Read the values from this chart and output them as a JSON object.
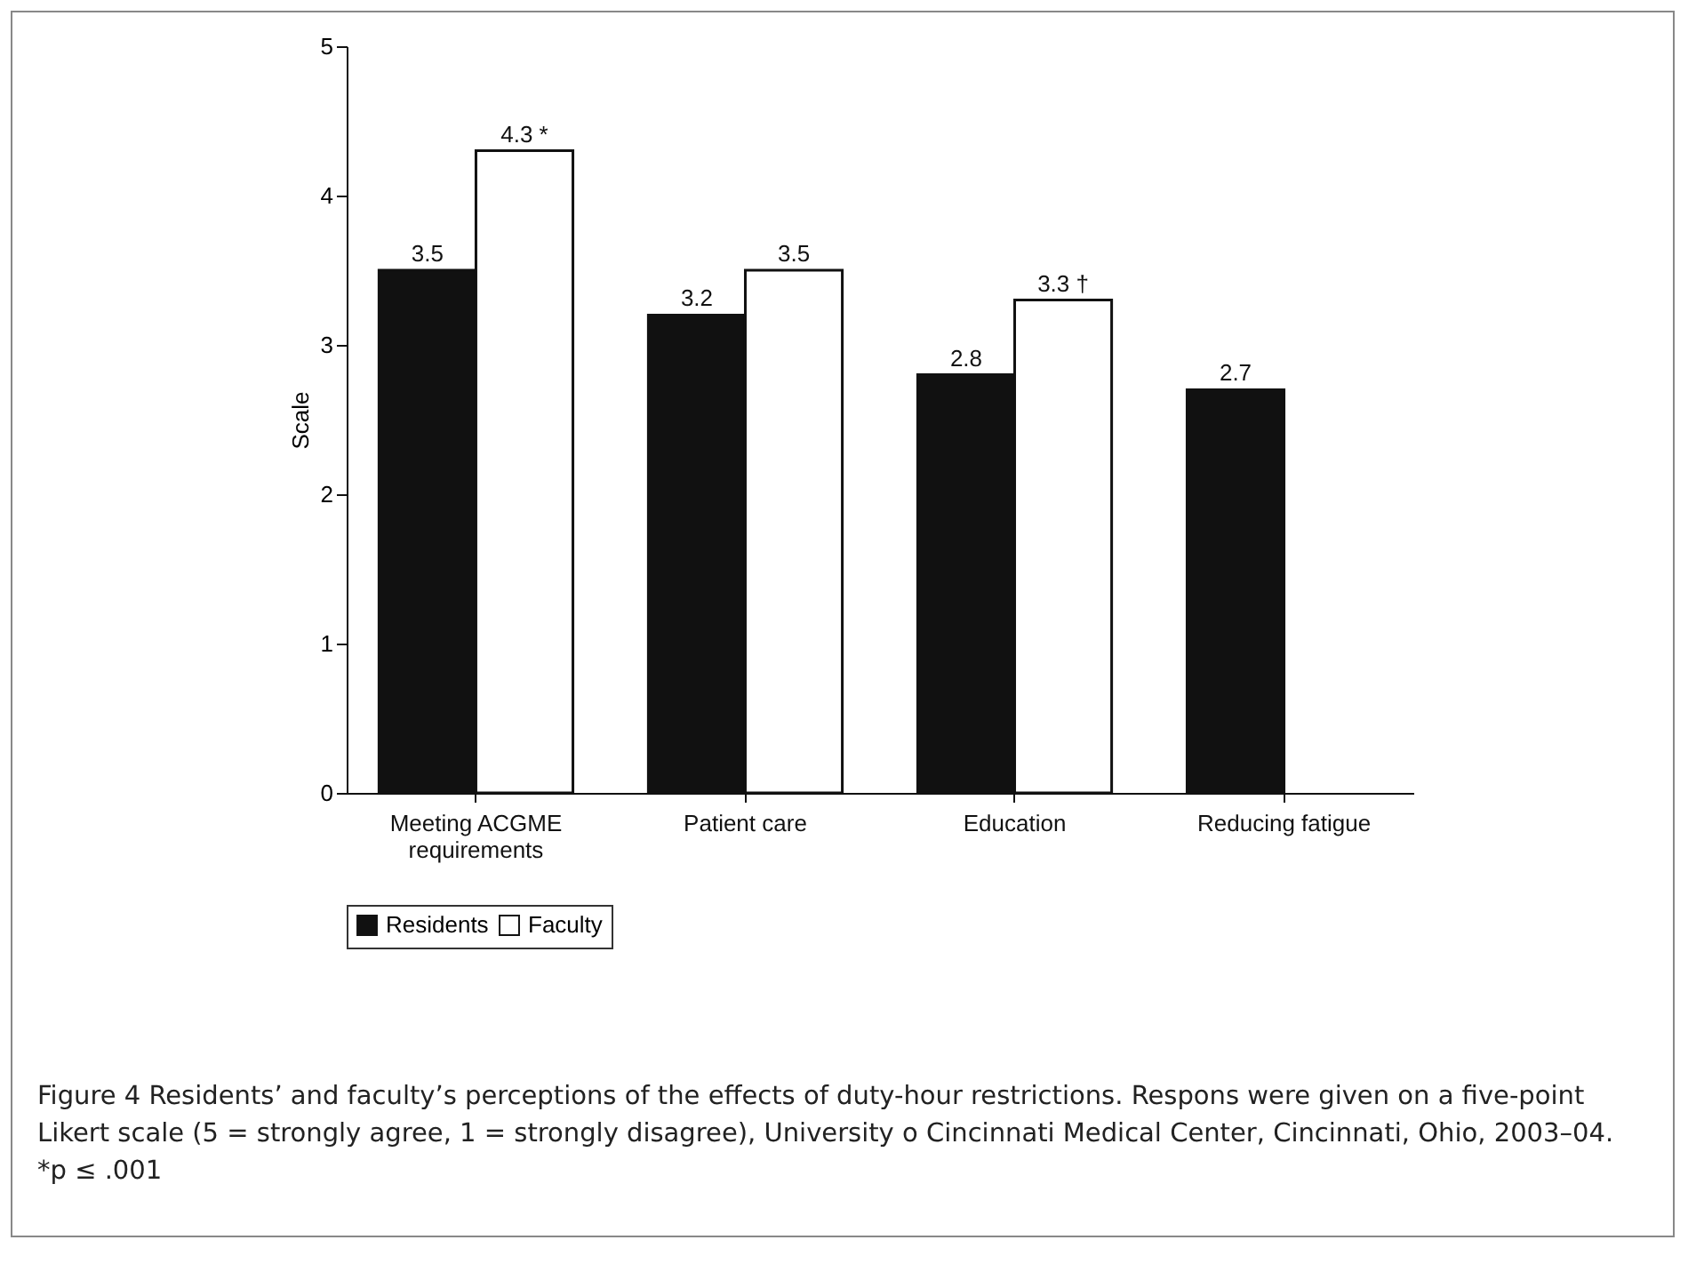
{
  "chart_data": {
    "type": "bar",
    "ylabel": "Scale",
    "categories": [
      "Meeting ACGME requirements",
      "Patient care",
      "Education",
      "Reducing fatigue"
    ],
    "series": [
      {
        "name": "Residents",
        "color": "#111111",
        "values": [
          3.5,
          3.2,
          2.8,
          2.7
        ],
        "value_labels": [
          "3.5",
          "3.2",
          "2.8",
          "2.7"
        ]
      },
      {
        "name": "Faculty",
        "color": "#ffffff",
        "values": [
          4.3,
          3.5,
          3.3,
          null
        ],
        "value_labels": [
          "4.3 *",
          "3.5",
          "3.3 †",
          null
        ]
      }
    ],
    "ylim": [
      0,
      5
    ],
    "yticks": [
      0,
      1,
      2,
      3,
      4,
      5
    ],
    "grid": false,
    "legend": "bottom",
    "annotations": [
      "Figure 4 Residents’ and faculty’s perceptions of the effects of duty-hour restrictions. Respons were given on a five-point Likert scale (5 = strongly agree, 1 = strongly disagree), University o Cincinnati Medical Center, Cincinnati, Ohio, 2003–04.",
      "*p ≤ .001"
    ]
  }
}
